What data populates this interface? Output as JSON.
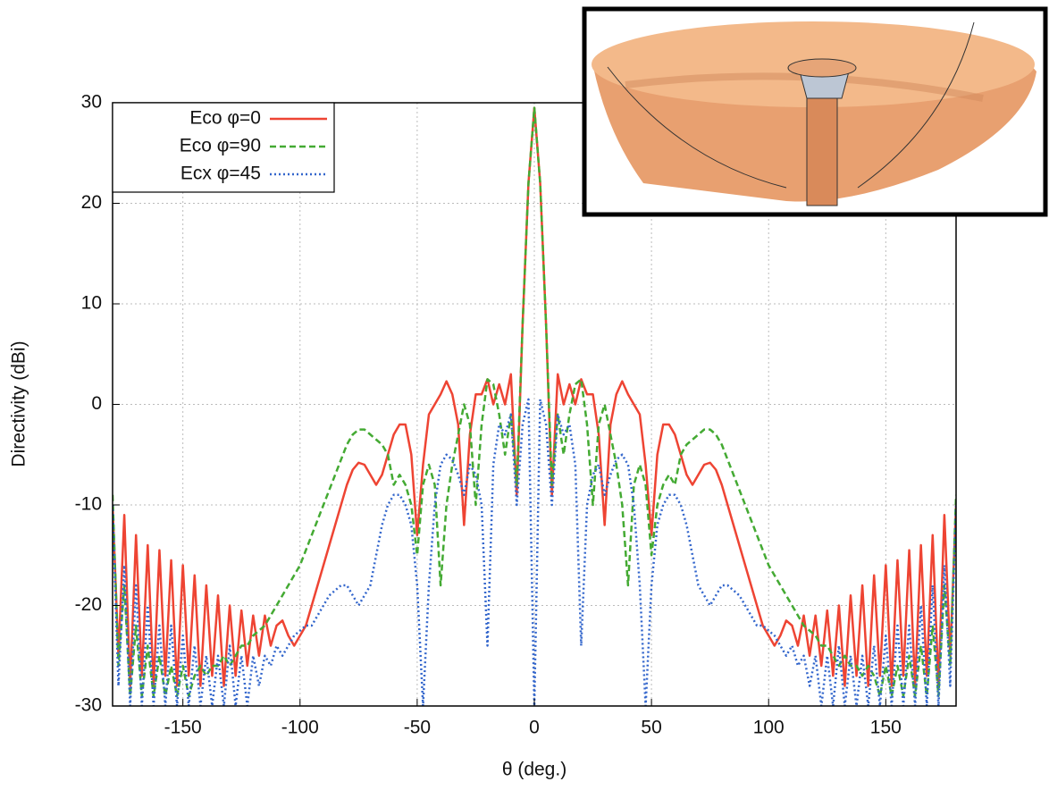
{
  "chart_data": {
    "type": "line",
    "xlabel": "θ (deg.)",
    "ylabel": "Directivity (dBi)",
    "xlim": [
      -180,
      180
    ],
    "ylim": [
      -30,
      30
    ],
    "xticks": [
      -150,
      -100,
      -50,
      0,
      50,
      100,
      150
    ],
    "yticks": [
      -30,
      -20,
      -10,
      0,
      10,
      20,
      30
    ],
    "grid": true,
    "legend": "upper left",
    "x": [
      -180,
      -177.5,
      -175,
      -172.5,
      -170,
      -167.5,
      -165,
      -162.5,
      -160,
      -157.5,
      -155,
      -152.5,
      -150,
      -147.5,
      -145,
      -142.5,
      -140,
      -137.5,
      -135,
      -132.5,
      -130,
      -127.5,
      -125,
      -122.5,
      -120,
      -117.5,
      -115,
      -112.5,
      -110,
      -107.5,
      -105,
      -102.5,
      -100,
      -97.5,
      -95,
      -92.5,
      -90,
      -87.5,
      -85,
      -82.5,
      -80,
      -77.5,
      -75,
      -72.5,
      -70,
      -67.5,
      -65,
      -62.5,
      -60,
      -57.5,
      -55,
      -52.5,
      -50,
      -47.5,
      -45,
      -42.5,
      -40,
      -37.5,
      -35,
      -32.5,
      -30,
      -27.5,
      -25,
      -22.5,
      -20,
      -17.5,
      -15,
      -12.5,
      -10,
      -7.5,
      -5,
      -2.5,
      0,
      2.5,
      5,
      7.5,
      10,
      12.5,
      15,
      17.5,
      20,
      22.5,
      25,
      27.5,
      30,
      32.5,
      35,
      37.5,
      40,
      42.5,
      45,
      47.5,
      50,
      52.5,
      55,
      57.5,
      60,
      62.5,
      65,
      67.5,
      70,
      72.5,
      75,
      77.5,
      80,
      82.5,
      85,
      87.5,
      90,
      92.5,
      95,
      97.5,
      100,
      102.5,
      105,
      107.5,
      110,
      112.5,
      115,
      117.5,
      120,
      122.5,
      125,
      127.5,
      130,
      132.5,
      135,
      137.5,
      140,
      142.5,
      145,
      147.5,
      150,
      152.5,
      155,
      157.5,
      160,
      162.5,
      165,
      167.5,
      170,
      172.5,
      175,
      177.5,
      180
    ],
    "series": [
      {
        "name": "Eco φ=0",
        "color": "#ee4433",
        "dash": "",
        "values": [
          -10,
          -25,
          -11,
          -28,
          -13,
          -27,
          -14,
          -28,
          -14.5,
          -27,
          -15.5,
          -28,
          -16,
          -27,
          -17,
          -28,
          -18,
          -27,
          -19,
          -28,
          -20,
          -27,
          -20.5,
          -26,
          -21,
          -25,
          -21,
          -24,
          -22,
          -21.5,
          -23,
          -24,
          -23,
          -22,
          -20,
          -18,
          -16,
          -14,
          -12,
          -10,
          -8,
          -6.5,
          -5.8,
          -6,
          -7,
          -8,
          -7,
          -5,
          -3,
          -2,
          -2,
          -5,
          -13,
          -6,
          -1,
          0,
          1,
          2.3,
          1,
          -2,
          -12,
          -3,
          1,
          1,
          2.5,
          0,
          2,
          0,
          3,
          -9,
          8,
          22,
          29.5,
          22,
          8,
          -9,
          3,
          0,
          2,
          0,
          2.5,
          1,
          1,
          -3,
          -12,
          -2,
          1,
          2.3,
          1,
          0,
          -1,
          -6,
          -13,
          -5,
          -2,
          -2,
          -3,
          -5,
          -7,
          -8,
          -7,
          -6,
          -5.8,
          -6.5,
          -8,
          -10,
          -12,
          -14,
          -16,
          -18,
          -20,
          -22,
          -23,
          -24,
          -23,
          -21.5,
          -22,
          -24,
          -21,
          -25,
          -21,
          -26,
          -20.5,
          -27,
          -20,
          -28,
          -19,
          -27,
          -18,
          -28,
          -17,
          -27,
          -16,
          -28,
          -15.5,
          -27,
          -14.5,
          -28,
          -14,
          -27,
          -13,
          -28,
          -11,
          -25,
          -10
        ]
      },
      {
        "name": "Eco φ=90",
        "color": "#44aa33",
        "dash": "7 4",
        "values": [
          -9,
          -26,
          -18,
          -29,
          -22,
          -29,
          -24,
          -29,
          -25,
          -29,
          -26,
          -29,
          -26,
          -29,
          -27,
          -26,
          -27,
          -26,
          -26,
          -25,
          -26,
          -25,
          -24,
          -24,
          -23,
          -22.5,
          -22,
          -21,
          -20,
          -19,
          -18,
          -17,
          -16,
          -14.5,
          -13,
          -11.5,
          -10,
          -8.5,
          -7,
          -5.5,
          -4,
          -3,
          -2.5,
          -2.5,
          -3,
          -3.5,
          -4,
          -5,
          -8,
          -7,
          -8,
          -10,
          -15,
          -8,
          -6,
          -8,
          -18,
          -10,
          -6,
          -3,
          0,
          -2,
          -10,
          -2,
          2.5,
          2,
          -1,
          -5,
          -1,
          -8,
          8,
          22,
          29.5,
          22,
          8,
          -8,
          -1,
          -5,
          -1,
          2,
          2.5,
          -2,
          -10,
          -2,
          0,
          -3,
          -6,
          -10,
          -18,
          -8,
          -6,
          -8,
          -15,
          -10,
          -8,
          -7,
          -8,
          -5,
          -4,
          -3.5,
          -3,
          -2.5,
          -2.5,
          -3,
          -4,
          -5.5,
          -7,
          -8.5,
          -10,
          -11.5,
          -13,
          -14.5,
          -16,
          -17,
          -18,
          -19,
          -20,
          -21,
          -22,
          -22.5,
          -23,
          -24,
          -24,
          -25,
          -26,
          -25,
          -26,
          -26,
          -27,
          -26,
          -27,
          -29,
          -26,
          -29,
          -26,
          -29,
          -25,
          -29,
          -24,
          -29,
          -22,
          -29,
          -18,
          -26,
          -9
        ]
      },
      {
        "name": "Ecx φ=45",
        "color": "#3366cc",
        "dash": "2 3",
        "values": [
          -10,
          -28,
          -16,
          -30,
          -18,
          -30,
          -20,
          -30,
          -22,
          -30,
          -22,
          -30,
          -23,
          -30,
          -24,
          -30,
          -25,
          -30,
          -25,
          -30,
          -24,
          -30,
          -25,
          -30,
          -25,
          -28,
          -25,
          -26,
          -24,
          -25,
          -24,
          -23,
          -22.5,
          -22,
          -22,
          -21,
          -20,
          -19,
          -18.5,
          -18,
          -18,
          -19,
          -20,
          -19,
          -18,
          -15,
          -12,
          -10,
          -9,
          -9,
          -10,
          -12,
          -18,
          -30,
          -18,
          -10,
          -6,
          -5,
          -5.5,
          -7,
          -9,
          -6,
          -7,
          -10,
          -24,
          -6,
          -2,
          -3,
          -1,
          -10,
          -2,
          0.5,
          -30,
          0.5,
          -2,
          -10,
          -1,
          -3,
          -2,
          -6,
          -24,
          -10,
          -7,
          -6,
          -9,
          -7,
          -5.5,
          -5,
          -6,
          -10,
          -18,
          -30,
          -18,
          -12,
          -10,
          -9,
          -9,
          -10,
          -12,
          -15,
          -18,
          -19,
          -20,
          -19,
          -18,
          -18,
          -18.5,
          -19,
          -20,
          -21,
          -22,
          -22,
          -22.5,
          -23,
          -24,
          -25,
          -24,
          -26,
          -25,
          -28,
          -25,
          -30,
          -25,
          -30,
          -24,
          -30,
          -25,
          -30,
          -25,
          -30,
          -24,
          -30,
          -23,
          -30,
          -22,
          -30,
          -22,
          -30,
          -20,
          -30,
          -18,
          -30,
          -16,
          -28,
          -10
        ]
      }
    ]
  }
}
